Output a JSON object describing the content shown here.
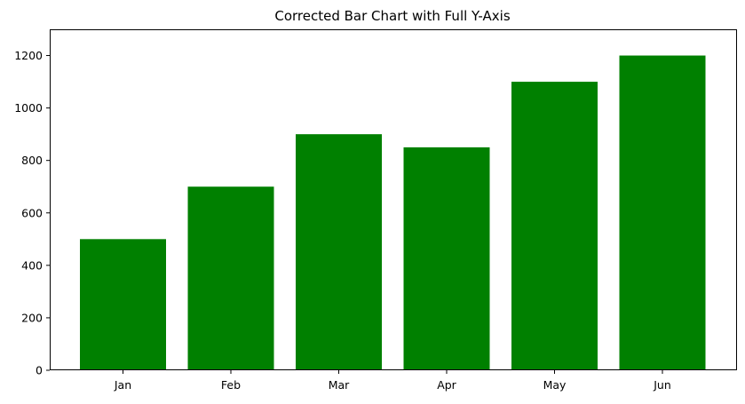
{
  "chart_data": {
    "type": "bar",
    "title": "Corrected Bar Chart with Full Y-Axis",
    "xlabel": "",
    "ylabel": "",
    "categories": [
      "Jan",
      "Feb",
      "Mar",
      "Apr",
      "May",
      "Jun"
    ],
    "values": [
      500,
      700,
      900,
      850,
      1100,
      1200
    ],
    "ylim": [
      0,
      1300
    ],
    "yticks": [
      0,
      200,
      400,
      600,
      800,
      1000,
      1200
    ],
    "ytick_labels": [
      "0",
      "200",
      "400",
      "600",
      "800",
      "1000",
      "1200"
    ],
    "grid": false,
    "bar_color": "#008000"
  }
}
